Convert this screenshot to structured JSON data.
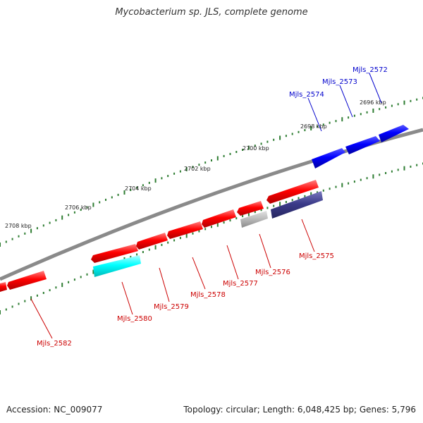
{
  "title": "Mycobacterium sp. JLS, complete genome",
  "footer": {
    "accession": "Accession: NC_009077",
    "topology": "Topology: circular; Length: 6,048,425 bp; Genes: 5,796"
  },
  "colors": {
    "backbone": "#8a8a8a",
    "tick": "#2e7d32",
    "forward_label": "#0000cc",
    "reverse_label": "#cc0000",
    "gene_red": "#ff0000",
    "gene_blue": "#0000ff",
    "gene_cyan": "#00ffff",
    "gene_gray": "#b0b0b0",
    "gene_slate": "#3b3b8a"
  },
  "kbp_labels": [
    "2696 kbp",
    "2698 kbp",
    "2700 kbp",
    "2702 kbp",
    "2704 kbp",
    "2706 kbp",
    "2708 kbp"
  ],
  "forward_genes": [
    {
      "name": "Mjls_2572",
      "color": "blue"
    },
    {
      "name": "Mjls_2573",
      "color": "blue"
    },
    {
      "name": "Mjls_2574",
      "color": "blue"
    }
  ],
  "reverse_genes": [
    {
      "name": "Mjls_2575",
      "color": "red"
    },
    {
      "name": "Mjls_2576",
      "color": "red"
    },
    {
      "name": "Mjls_2577",
      "color": "red"
    },
    {
      "name": "Mjls_2578",
      "color": "red"
    },
    {
      "name": "Mjls_2579",
      "color": "red"
    },
    {
      "name": "Mjls_2580",
      "color": "red"
    },
    {
      "name": "Mjls_2582",
      "color": "red"
    }
  ]
}
